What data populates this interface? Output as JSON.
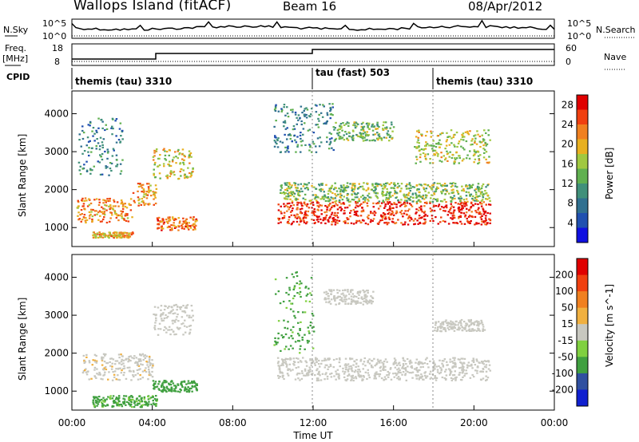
{
  "header": {
    "title": "Wallops Island (fitACF)",
    "beam": "Beam 16",
    "date": "08/Apr/2012"
  },
  "aux_panels": {
    "nsky_label": "N.Sky",
    "nsky_ticks": [
      "10^5",
      "10^0"
    ],
    "nsearch_label": "N.Search",
    "nsearch_ticks": [
      "10^5",
      "10^0"
    ],
    "freq_label": "Freq.",
    "freq_units": "[MHz]",
    "freq_ticks": [
      "18",
      "8"
    ],
    "nave_label": "Nave",
    "nave_ticks": [
      "60",
      "0"
    ],
    "cpid_label": "CPID",
    "cpid_segments": [
      {
        "label": "themis (tau) 3310",
        "start_hour": 0
      },
      {
        "label": "tau (fast) 503",
        "start_hour": 12
      },
      {
        "label": "themis (tau) 3310",
        "start_hour": 18
      }
    ]
  },
  "chart_data": [
    {
      "type": "heatmap",
      "title": "",
      "xlabel": "Time UT",
      "ylabel": "Slant Range [km]",
      "xlim_hours": [
        0,
        24
      ],
      "ylim_km": [
        500,
        4600
      ],
      "x_ticks": [
        "00:00",
        "04:00",
        "08:00",
        "12:00",
        "16:00",
        "20:00",
        "00:00"
      ],
      "y_ticks": [
        1000,
        2000,
        3000,
        4000
      ],
      "colorbar": {
        "label": "Power [dB]",
        "ticks": [
          4,
          8,
          12,
          16,
          20,
          24,
          28
        ],
        "range": [
          0,
          30
        ],
        "colors": [
          "#1010e0",
          "#2050b0",
          "#307090",
          "#40907a",
          "#60b050",
          "#a0c840",
          "#e8b020",
          "#f08020",
          "#f04010",
          "#e00000"
        ]
      },
      "bands": [
        {
          "t": [
            0.2,
            3.0
          ],
          "range_km": [
            1150,
            1800
          ],
          "value": 22
        },
        {
          "t": [
            1.0,
            3.0
          ],
          "range_km": [
            750,
            900
          ],
          "value": 20
        },
        {
          "t": [
            3.0,
            4.2
          ],
          "range_km": [
            1600,
            2200
          ],
          "value": 21
        },
        {
          "t": [
            4.0,
            6.0
          ],
          "range_km": [
            2300,
            3100
          ],
          "value": 18
        },
        {
          "t": [
            4.2,
            6.2
          ],
          "range_km": [
            950,
            1300
          ],
          "value": 23
        },
        {
          "t": [
            0.3,
            2.5
          ],
          "range_km": [
            2400,
            3900
          ],
          "value": 9
        },
        {
          "t": [
            10.2,
            20.8
          ],
          "range_km": [
            1100,
            1700
          ],
          "value": 27
        },
        {
          "t": [
            10.3,
            20.8
          ],
          "range_km": [
            1700,
            2200
          ],
          "value": 15
        },
        {
          "t": [
            10.0,
            13.0
          ],
          "range_km": [
            3000,
            4300
          ],
          "value": 9
        },
        {
          "t": [
            13.0,
            16.0
          ],
          "range_km": [
            3300,
            3800
          ],
          "value": 14
        },
        {
          "t": [
            17.0,
            20.8
          ],
          "range_km": [
            2700,
            3600
          ],
          "value": 17
        }
      ]
    },
    {
      "type": "heatmap",
      "title": "",
      "xlabel": "Time UT",
      "ylabel": "Slant Range [km]",
      "xlim_hours": [
        0,
        24
      ],
      "ylim_km": [
        500,
        4600
      ],
      "x_ticks": [
        "00:00",
        "04:00",
        "08:00",
        "12:00",
        "16:00",
        "20:00",
        "00:00"
      ],
      "y_ticks": [
        1000,
        2000,
        3000,
        4000
      ],
      "colorbar": {
        "label": "Velocity [m s^-1]",
        "ticks": [
          "200",
          "100",
          "50",
          "15",
          "-15",
          "-50",
          "-100",
          "-200"
        ],
        "colors": [
          "#1020d0",
          "#3050a0",
          "#40a040",
          "#80d040",
          "#c8c8c0",
          "#f0b040",
          "#f08020",
          "#f04010",
          "#e00000"
        ]
      },
      "bands": [
        {
          "t": [
            0.5,
            4.0
          ],
          "range_km": [
            1300,
            2000
          ],
          "value": -5
        },
        {
          "t": [
            1.0,
            4.2
          ],
          "range_km": [
            600,
            900
          ],
          "value": 40
        },
        {
          "t": [
            4.0,
            6.2
          ],
          "range_km": [
            1000,
            1300
          ],
          "value": 45
        },
        {
          "t": [
            4.0,
            6.0
          ],
          "range_km": [
            2500,
            3300
          ],
          "value": 0
        },
        {
          "t": [
            10.2,
            20.8
          ],
          "range_km": [
            1300,
            1900
          ],
          "value": 0
        },
        {
          "t": [
            12.5,
            15.0
          ],
          "range_km": [
            3300,
            3700
          ],
          "value": 0
        },
        {
          "t": [
            18.0,
            20.5
          ],
          "range_km": [
            2600,
            2900
          ],
          "value": 0
        },
        {
          "t": [
            10.0,
            12.0
          ],
          "range_km": [
            2000,
            4200
          ],
          "value": 40
        }
      ]
    }
  ]
}
